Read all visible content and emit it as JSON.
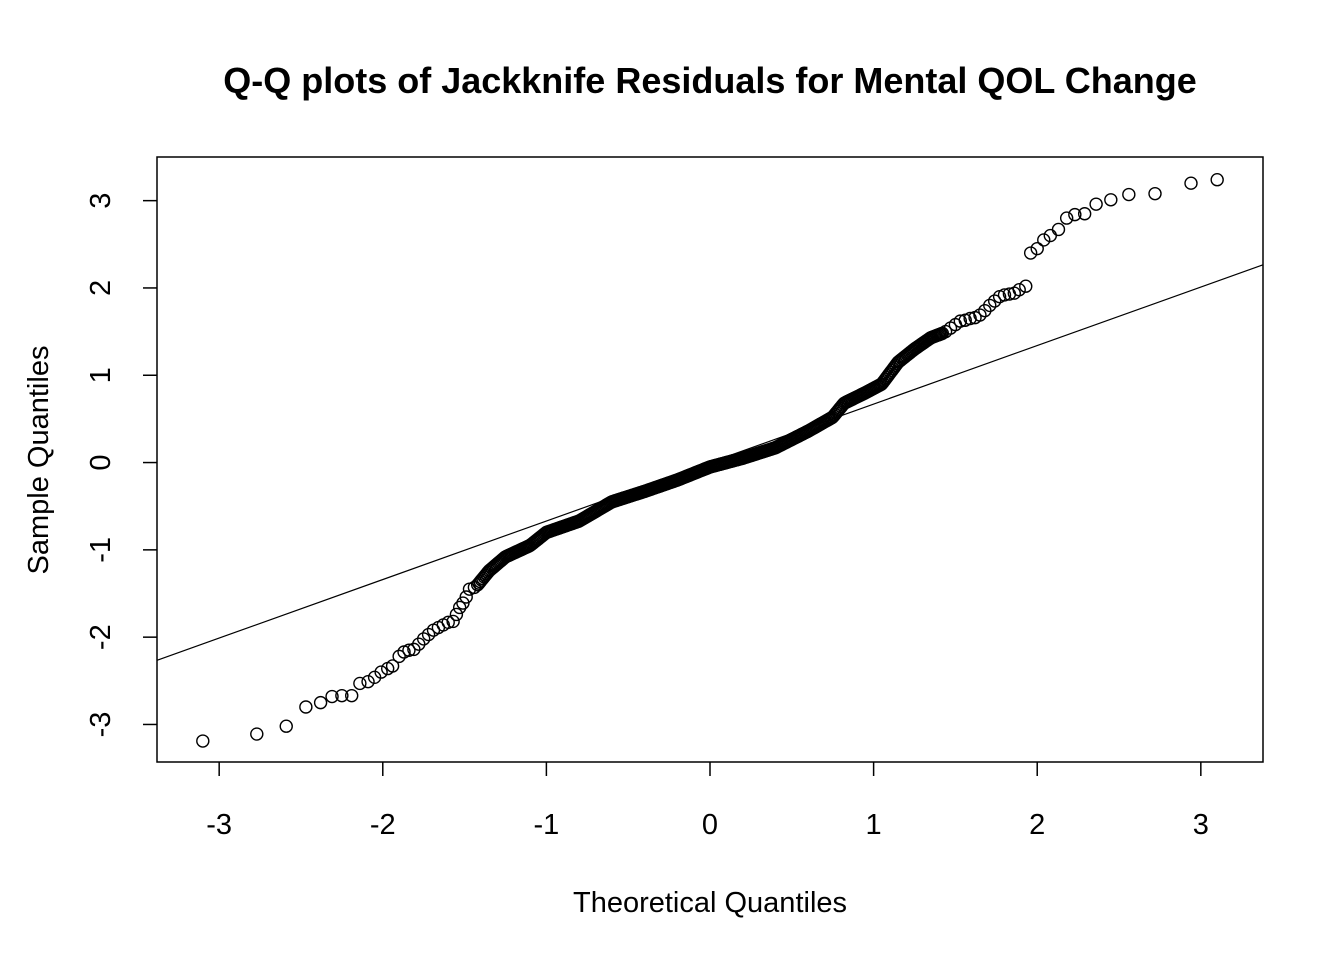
{
  "chart_data": {
    "type": "scatter",
    "title": "Q-Q plots of Jackknife Residuals for Mental QOL Change",
    "xlabel": "Theoretical Quantiles",
    "ylabel": "Sample Quantiles",
    "xlim": [
      -3.38,
      3.38
    ],
    "ylim": [
      -3.43,
      3.5
    ],
    "x_ticks": [
      -3,
      -2,
      -1,
      0,
      1,
      2,
      3
    ],
    "x_tick_labels": [
      "-3",
      "-2",
      "-1",
      "0",
      "1",
      "2",
      "3"
    ],
    "y_ticks": [
      -3,
      -2,
      -1,
      0,
      1,
      2,
      3
    ],
    "y_tick_labels": [
      "-3",
      "-2",
      "-1",
      "0",
      "1",
      "2",
      "3"
    ],
    "reference_line": {
      "intercept": 0.0,
      "slope": 0.67
    },
    "tail_points": [
      {
        "x": -3.1,
        "y": -3.19
      },
      {
        "x": -2.77,
        "y": -3.11
      },
      {
        "x": -2.59,
        "y": -3.02
      },
      {
        "x": -2.47,
        "y": -2.8
      },
      {
        "x": -2.38,
        "y": -2.75
      },
      {
        "x": -2.31,
        "y": -2.68
      },
      {
        "x": -2.25,
        "y": -2.67
      },
      {
        "x": -2.19,
        "y": -2.67
      },
      {
        "x": -2.14,
        "y": -2.53
      },
      {
        "x": -2.09,
        "y": -2.51
      },
      {
        "x": -2.05,
        "y": -2.46
      },
      {
        "x": -2.01,
        "y": -2.4
      },
      {
        "x": -1.97,
        "y": -2.36
      },
      {
        "x": -1.94,
        "y": -2.33
      },
      {
        "x": -1.9,
        "y": -2.22
      },
      {
        "x": -1.87,
        "y": -2.17
      },
      {
        "x": -1.84,
        "y": -2.15
      },
      {
        "x": -1.81,
        "y": -2.14
      },
      {
        "x": -1.78,
        "y": -2.08
      },
      {
        "x": -1.75,
        "y": -2.02
      },
      {
        "x": -1.72,
        "y": -1.97
      },
      {
        "x": -1.69,
        "y": -1.92
      },
      {
        "x": -1.66,
        "y": -1.89
      },
      {
        "x": -1.63,
        "y": -1.86
      },
      {
        "x": -1.6,
        "y": -1.83
      },
      {
        "x": -1.57,
        "y": -1.82
      },
      {
        "x": -1.55,
        "y": -1.74
      },
      {
        "x": -1.53,
        "y": -1.66
      },
      {
        "x": -1.51,
        "y": -1.61
      },
      {
        "x": -1.49,
        "y": -1.54
      },
      {
        "x": -1.47,
        "y": -1.45
      },
      {
        "x": -1.44,
        "y": -1.43
      },
      {
        "x": 1.44,
        "y": 1.5
      },
      {
        "x": 1.47,
        "y": 1.54
      },
      {
        "x": 1.5,
        "y": 1.58
      },
      {
        "x": 1.53,
        "y": 1.62
      },
      {
        "x": 1.56,
        "y": 1.63
      },
      {
        "x": 1.59,
        "y": 1.65
      },
      {
        "x": 1.62,
        "y": 1.66
      },
      {
        "x": 1.65,
        "y": 1.69
      },
      {
        "x": 1.68,
        "y": 1.74
      },
      {
        "x": 1.71,
        "y": 1.8
      },
      {
        "x": 1.74,
        "y": 1.85
      },
      {
        "x": 1.77,
        "y": 1.9
      },
      {
        "x": 1.8,
        "y": 1.92
      },
      {
        "x": 1.83,
        "y": 1.93
      },
      {
        "x": 1.86,
        "y": 1.94
      },
      {
        "x": 1.89,
        "y": 1.98
      },
      {
        "x": 1.93,
        "y": 2.02
      },
      {
        "x": 1.96,
        "y": 2.4
      },
      {
        "x": 2.0,
        "y": 2.45
      },
      {
        "x": 2.04,
        "y": 2.55
      },
      {
        "x": 2.08,
        "y": 2.6
      },
      {
        "x": 2.13,
        "y": 2.67
      },
      {
        "x": 2.18,
        "y": 2.8
      },
      {
        "x": 2.23,
        "y": 2.84
      },
      {
        "x": 2.29,
        "y": 2.85
      },
      {
        "x": 2.36,
        "y": 2.96
      },
      {
        "x": 2.45,
        "y": 3.01
      },
      {
        "x": 2.56,
        "y": 3.07
      },
      {
        "x": 2.72,
        "y": 3.08
      },
      {
        "x": 2.94,
        "y": 3.2
      },
      {
        "x": 3.1,
        "y": 3.24
      }
    ],
    "body_curve": {
      "description": "dense central band of ordered residuals",
      "x_range": [
        -1.42,
        1.42
      ],
      "n_points": 360,
      "knots": [
        {
          "x": -1.42,
          "y": -1.4
        },
        {
          "x": -1.35,
          "y": -1.24
        },
        {
          "x": -1.25,
          "y": -1.08
        },
        {
          "x": -1.1,
          "y": -0.95
        },
        {
          "x": -1.0,
          "y": -0.8
        },
        {
          "x": -0.8,
          "y": -0.67
        },
        {
          "x": -0.6,
          "y": -0.45
        },
        {
          "x": -0.4,
          "y": -0.33
        },
        {
          "x": -0.2,
          "y": -0.2
        },
        {
          "x": 0.0,
          "y": -0.05
        },
        {
          "x": 0.2,
          "y": 0.05
        },
        {
          "x": 0.4,
          "y": 0.17
        },
        {
          "x": 0.6,
          "y": 0.36
        },
        {
          "x": 0.75,
          "y": 0.52
        },
        {
          "x": 0.82,
          "y": 0.68
        },
        {
          "x": 0.95,
          "y": 0.8
        },
        {
          "x": 1.05,
          "y": 0.9
        },
        {
          "x": 1.15,
          "y": 1.15
        },
        {
          "x": 1.25,
          "y": 1.3
        },
        {
          "x": 1.35,
          "y": 1.43
        },
        {
          "x": 1.42,
          "y": 1.48
        }
      ]
    }
  }
}
